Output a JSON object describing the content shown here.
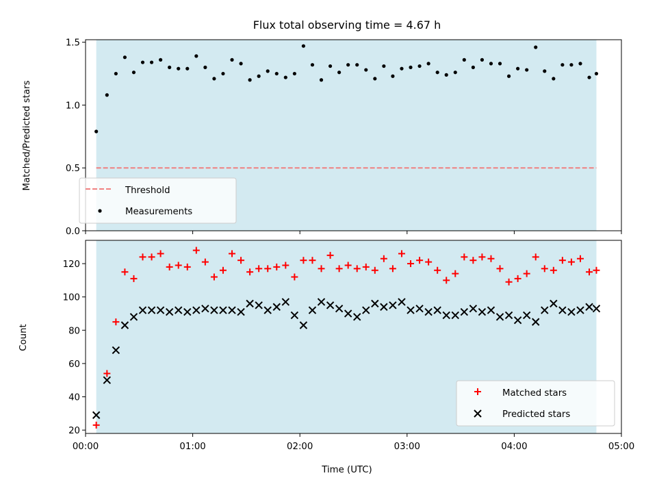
{
  "chart_data": [
    {
      "type": "scatter",
      "title": "Flux total observing time = 4.67 h",
      "xlabel": "",
      "ylabel": "Matched/Predicted stars",
      "xlim": [
        "00:00",
        "05:00"
      ],
      "ylim": [
        0,
        1.52
      ],
      "yticks": [
        "0.0",
        "0.5",
        "1.0",
        "1.5"
      ],
      "observing_window": [
        "00:06",
        "04:46"
      ],
      "window_color": "#d3eaf1",
      "legend_position": "lower-left",
      "threshold": {
        "name": "Threshold",
        "value": 0.5,
        "color": "#f08080",
        "style": "dashed"
      },
      "series": [
        {
          "name": "Measurements",
          "color": "#000000",
          "marker": "dot",
          "x": [
            "00:06",
            "00:12",
            "00:17",
            "00:22",
            "00:27",
            "00:32",
            "00:37",
            "00:42",
            "00:47",
            "00:52",
            "00:57",
            "01:02",
            "01:07",
            "01:12",
            "01:17",
            "01:22",
            "01:27",
            "01:32",
            "01:37",
            "01:42",
            "01:47",
            "01:52",
            "01:57",
            "02:02",
            "02:07",
            "02:12",
            "02:17",
            "02:22",
            "02:27",
            "02:32",
            "02:37",
            "02:42",
            "02:47",
            "02:52",
            "02:57",
            "03:02",
            "03:07",
            "03:12",
            "03:17",
            "03:22",
            "03:27",
            "03:32",
            "03:37",
            "03:42",
            "03:47",
            "03:52",
            "03:57",
            "04:02",
            "04:07",
            "04:12",
            "04:17",
            "04:22",
            "04:27",
            "04:32",
            "04:37",
            "04:42",
            "04:46"
          ],
          "y": [
            0.79,
            1.08,
            1.25,
            1.38,
            1.26,
            1.34,
            1.34,
            1.36,
            1.3,
            1.29,
            1.29,
            1.39,
            1.3,
            1.21,
            1.25,
            1.36,
            1.33,
            1.2,
            1.23,
            1.27,
            1.25,
            1.22,
            1.25,
            1.47,
            1.32,
            1.2,
            1.31,
            1.26,
            1.32,
            1.32,
            1.28,
            1.21,
            1.31,
            1.23,
            1.29,
            1.3,
            1.31,
            1.33,
            1.26,
            1.24,
            1.26,
            1.36,
            1.3,
            1.36,
            1.33,
            1.33,
            1.23,
            1.29,
            1.28,
            1.46,
            1.27,
            1.21,
            1.32,
            1.32,
            1.33,
            1.22,
            1.25
          ]
        }
      ]
    },
    {
      "type": "scatter",
      "title": "",
      "xlabel": "Time (UTC)",
      "ylabel": "Count",
      "xlim": [
        "00:00",
        "05:00"
      ],
      "xticks": [
        "00:00",
        "01:00",
        "02:00",
        "03:00",
        "04:00",
        "05:00"
      ],
      "ylim": [
        18,
        134
      ],
      "yticks": [
        "20",
        "40",
        "60",
        "80",
        "100",
        "120"
      ],
      "observing_window": [
        "00:06",
        "04:46"
      ],
      "window_color": "#d3eaf1",
      "legend_position": "lower-right",
      "series": [
        {
          "name": "Matched stars",
          "color": "#ff0000",
          "marker": "plus",
          "x": [
            "00:06",
            "00:12",
            "00:17",
            "00:22",
            "00:27",
            "00:32",
            "00:37",
            "00:42",
            "00:47",
            "00:52",
            "00:57",
            "01:02",
            "01:07",
            "01:12",
            "01:17",
            "01:22",
            "01:27",
            "01:32",
            "01:37",
            "01:42",
            "01:47",
            "01:52",
            "01:57",
            "02:02",
            "02:07",
            "02:12",
            "02:17",
            "02:22",
            "02:27",
            "02:32",
            "02:37",
            "02:42",
            "02:47",
            "02:52",
            "02:57",
            "03:02",
            "03:07",
            "03:12",
            "03:17",
            "03:22",
            "03:27",
            "03:32",
            "03:37",
            "03:42",
            "03:47",
            "03:52",
            "03:57",
            "04:02",
            "04:07",
            "04:12",
            "04:17",
            "04:22",
            "04:27",
            "04:32",
            "04:37",
            "04:42",
            "04:46"
          ],
          "y": [
            23,
            54,
            85,
            115,
            111,
            124,
            124,
            126,
            118,
            119,
            118,
            128,
            121,
            112,
            116,
            126,
            122,
            115,
            117,
            117,
            118,
            119,
            112,
            122,
            122,
            117,
            125,
            117,
            119,
            117,
            118,
            116,
            123,
            117,
            126,
            120,
            122,
            121,
            116,
            110,
            114,
            124,
            122,
            124,
            123,
            117,
            109,
            111,
            114,
            124,
            117,
            116,
            122,
            121,
            123,
            115,
            116
          ]
        },
        {
          "name": "Predicted stars",
          "color": "#000000",
          "marker": "x",
          "x": [
            "00:06",
            "00:12",
            "00:17",
            "00:22",
            "00:27",
            "00:32",
            "00:37",
            "00:42",
            "00:47",
            "00:52",
            "00:57",
            "01:02",
            "01:07",
            "01:12",
            "01:17",
            "01:22",
            "01:27",
            "01:32",
            "01:37",
            "01:42",
            "01:47",
            "01:52",
            "01:57",
            "02:02",
            "02:07",
            "02:12",
            "02:17",
            "02:22",
            "02:27",
            "02:32",
            "02:37",
            "02:42",
            "02:47",
            "02:52",
            "02:57",
            "03:02",
            "03:07",
            "03:12",
            "03:17",
            "03:22",
            "03:27",
            "03:32",
            "03:37",
            "03:42",
            "03:47",
            "03:52",
            "03:57",
            "04:02",
            "04:07",
            "04:12",
            "04:17",
            "04:22",
            "04:27",
            "04:32",
            "04:37",
            "04:42",
            "04:46"
          ],
          "y": [
            29,
            50,
            68,
            83,
            88,
            92,
            92,
            92,
            91,
            92,
            91,
            92,
            93,
            92,
            92,
            92,
            91,
            96,
            95,
            92,
            94,
            97,
            89,
            83,
            92,
            97,
            95,
            93,
            90,
            88,
            92,
            96,
            94,
            95,
            97,
            92,
            93,
            91,
            92,
            89,
            89,
            91,
            93,
            91,
            92,
            88,
            89,
            86,
            89,
            85,
            92,
            96,
            92,
            91,
            92,
            94,
            93
          ]
        }
      ]
    }
  ]
}
